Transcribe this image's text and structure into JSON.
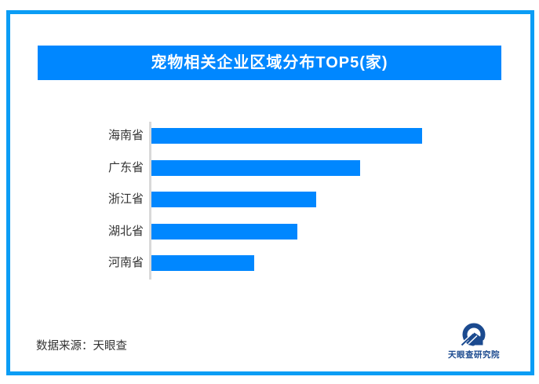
{
  "title_bar": {
    "title": "宠物相关企业区域分布TOP5(家)"
  },
  "source": {
    "text": "数据来源：天眼查"
  },
  "logo": {
    "icon": "tianyancha-eye-icon",
    "text": "天眼查研究院"
  },
  "colors": {
    "bar_blue": "#0087ff",
    "title_bg": "#0087ff",
    "frame_border": "#0b9df5",
    "axis_gray": "#d9d9d9",
    "label_text": "#333333",
    "logo_navy": "#1b4a8f"
  },
  "chart_data": {
    "type": "bar",
    "orientation": "horizontal",
    "title": "宠物相关企业区域分布TOP5(家)",
    "categories": [
      "海南省",
      "广东省",
      "浙江省",
      "湖北省",
      "河南省"
    ],
    "values": [
      100,
      77,
      61,
      54,
      38
    ],
    "values_unit": "relative length, % of longest bar (no numeric data labels shown in image)",
    "xlabel": "",
    "ylabel": "",
    "grid": false,
    "legend": false,
    "data_labels": false
  }
}
